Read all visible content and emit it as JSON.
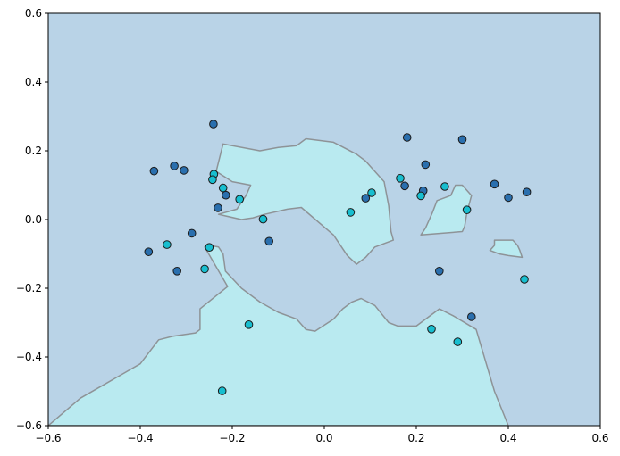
{
  "chart_data": {
    "type": "scatter",
    "title": "",
    "xlabel": "",
    "ylabel": "",
    "xlim": [
      -0.6,
      0.6
    ],
    "ylim": [
      -0.6,
      0.6
    ],
    "xticks": [
      -0.6,
      -0.4,
      -0.2,
      0.0,
      0.2,
      0.4,
      0.6
    ],
    "yticks": [
      -0.6,
      -0.4,
      -0.2,
      0.0,
      0.2,
      0.4,
      0.6
    ],
    "xtick_labels": [
      "−0.6",
      "−0.4",
      "−0.2",
      "0.0",
      "0.2",
      "0.4",
      "0.6"
    ],
    "ytick_labels": [
      "−0.6",
      "−0.4",
      "−0.2",
      "0.0",
      "0.2",
      "0.4",
      "0.6"
    ],
    "grid": false,
    "legend": "none",
    "colors": {
      "background_region": "#b9d3e7",
      "decision_region": "#b9eaf0",
      "boundary": "#8e9397",
      "class_dark": "#2a6fae",
      "class_light": "#17becf",
      "point_edge": "#1a1a1a"
    },
    "decision_regions": [
      [
        [
          -0.6,
          -0.6
        ],
        [
          -0.53,
          -0.52
        ],
        [
          -0.4,
          -0.42
        ],
        [
          -0.36,
          -0.35
        ],
        [
          -0.33,
          -0.34
        ],
        [
          -0.28,
          -0.33
        ],
        [
          -0.27,
          -0.32
        ],
        [
          -0.27,
          -0.26
        ],
        [
          -0.21,
          -0.195
        ],
        [
          -0.26,
          -0.08
        ],
        [
          -0.25,
          -0.075
        ],
        [
          -0.23,
          -0.08
        ],
        [
          -0.22,
          -0.1
        ],
        [
          -0.215,
          -0.15
        ],
        [
          -0.18,
          -0.2
        ],
        [
          -0.14,
          -0.24
        ],
        [
          -0.1,
          -0.27
        ],
        [
          -0.06,
          -0.29
        ],
        [
          -0.04,
          -0.32
        ],
        [
          -0.02,
          -0.325
        ],
        [
          0.02,
          -0.29
        ],
        [
          0.04,
          -0.26
        ],
        [
          0.06,
          -0.24
        ],
        [
          0.08,
          -0.23
        ],
        [
          0.11,
          -0.25
        ],
        [
          0.14,
          -0.3
        ],
        [
          0.16,
          -0.31
        ],
        [
          0.2,
          -0.31
        ],
        [
          0.25,
          -0.26
        ],
        [
          0.28,
          -0.28
        ],
        [
          0.33,
          -0.32
        ],
        [
          0.37,
          -0.5
        ],
        [
          0.4,
          -0.6
        ]
      ],
      [
        [
          -0.22,
          0.22
        ],
        [
          -0.235,
          0.14
        ],
        [
          -0.2,
          0.11
        ],
        [
          -0.16,
          0.1
        ],
        [
          -0.17,
          0.07
        ],
        [
          -0.19,
          0.03
        ],
        [
          -0.23,
          0.015
        ],
        [
          -0.18,
          0.0
        ],
        [
          -0.155,
          0.005
        ],
        [
          -0.13,
          0.015
        ],
        [
          -0.08,
          0.03
        ],
        [
          -0.05,
          0.035
        ],
        [
          0.02,
          -0.045
        ],
        [
          0.05,
          -0.105
        ],
        [
          0.07,
          -0.13
        ],
        [
          0.09,
          -0.11
        ],
        [
          0.11,
          -0.08
        ],
        [
          0.15,
          -0.06
        ],
        [
          0.145,
          -0.035
        ],
        [
          0.14,
          0.04
        ],
        [
          0.13,
          0.11
        ],
        [
          0.12,
          0.125
        ],
        [
          0.09,
          0.17
        ],
        [
          0.07,
          0.19
        ],
        [
          0.02,
          0.225
        ],
        [
          -0.04,
          0.235
        ],
        [
          -0.06,
          0.215
        ],
        [
          -0.1,
          0.21
        ],
        [
          -0.14,
          0.2
        ]
      ],
      [
        [
          0.21,
          -0.045
        ],
        [
          0.22,
          -0.025
        ],
        [
          0.235,
          0.02
        ],
        [
          0.245,
          0.055
        ],
        [
          0.275,
          0.07
        ],
        [
          0.285,
          0.1
        ],
        [
          0.3,
          0.1
        ],
        [
          0.32,
          0.07
        ],
        [
          0.31,
          0.02
        ],
        [
          0.305,
          -0.02
        ],
        [
          0.3,
          -0.035
        ]
      ],
      [
        [
          0.37,
          -0.06
        ],
        [
          0.41,
          -0.06
        ],
        [
          0.42,
          -0.075
        ],
        [
          0.425,
          -0.09
        ],
        [
          0.43,
          -0.11
        ],
        [
          0.4,
          -0.105
        ],
        [
          0.38,
          -0.1
        ],
        [
          0.36,
          -0.09
        ],
        [
          0.37,
          -0.075
        ]
      ]
    ],
    "series": [
      {
        "class": "dark",
        "x": [
          -0.241,
          -0.37,
          -0.326,
          -0.305,
          -0.231,
          -0.214,
          -0.288,
          -0.382,
          -0.32,
          -0.12,
          0.18,
          0.3,
          0.22,
          0.175,
          0.215,
          0.37,
          0.4,
          0.44,
          0.09,
          0.25,
          0.32
        ],
        "y": [
          0.278,
          0.141,
          0.156,
          0.143,
          0.034,
          0.071,
          -0.04,
          -0.094,
          -0.15,
          -0.063,
          0.239,
          0.233,
          0.16,
          0.098,
          0.084,
          0.103,
          0.064,
          0.08,
          0.062,
          -0.15,
          -0.283
        ]
      },
      {
        "class": "light",
        "x": [
          -0.24,
          -0.243,
          -0.22,
          -0.184,
          -0.133,
          -0.25,
          -0.342,
          -0.26,
          -0.164,
          -0.222,
          0.057,
          0.103,
          0.165,
          0.21,
          0.262,
          0.31,
          0.233,
          0.29,
          0.435
        ],
        "y": [
          0.132,
          0.116,
          0.092,
          0.059,
          0.001,
          -0.081,
          -0.073,
          -0.144,
          -0.306,
          -0.499,
          0.021,
          0.078,
          0.12,
          0.069,
          0.096,
          0.028,
          -0.319,
          -0.356,
          -0.174
        ]
      }
    ]
  }
}
